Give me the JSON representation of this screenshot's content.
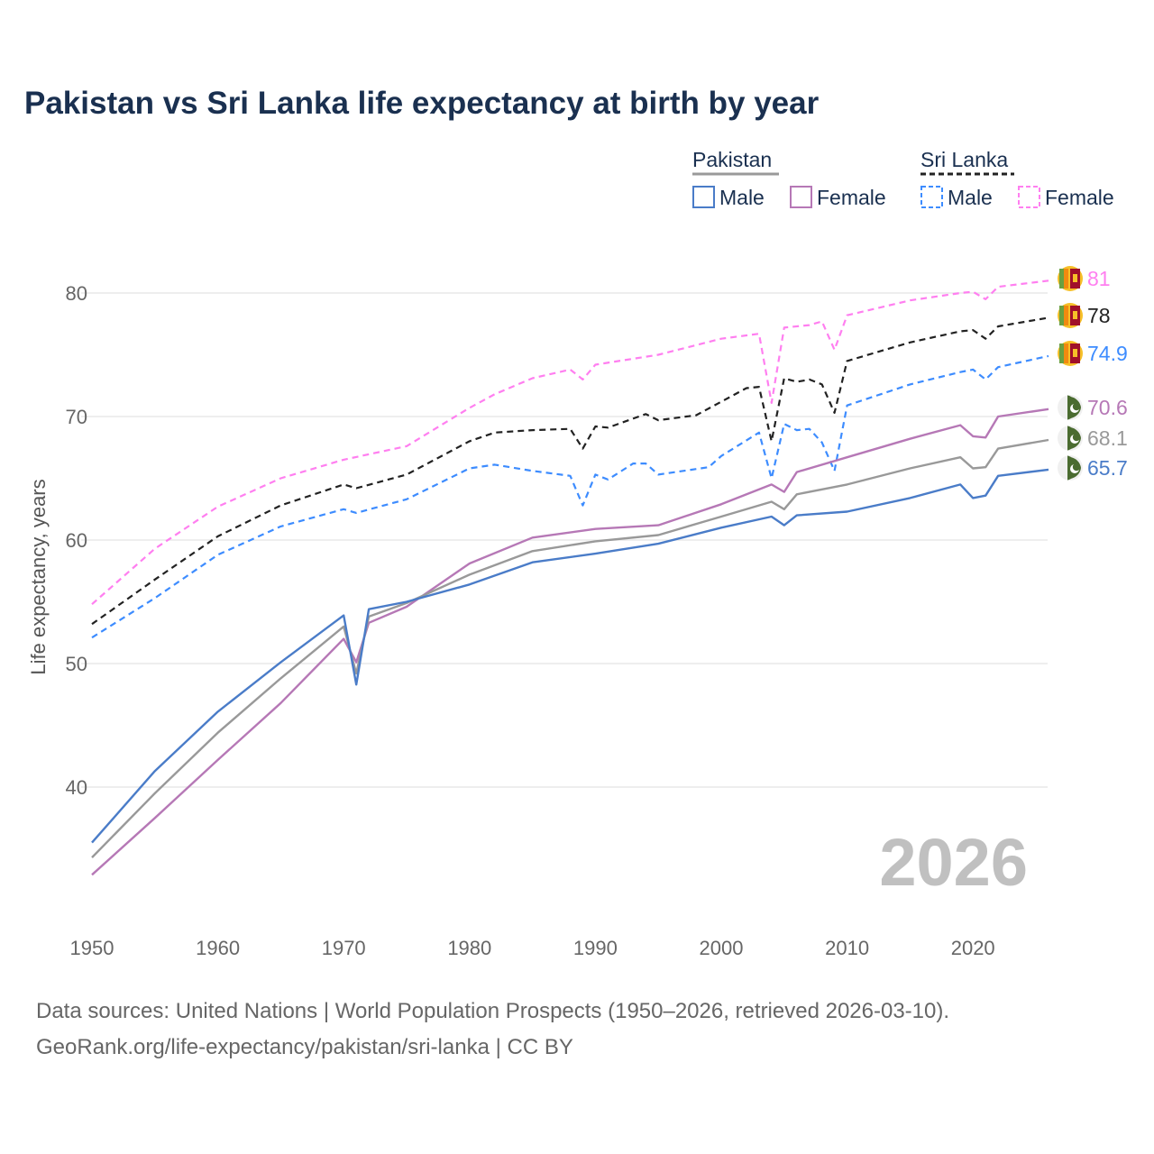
{
  "title": "Pakistan vs Sri Lanka life expectancy at birth by year",
  "legend": {
    "groups": [
      {
        "name": "Pakistan",
        "items": [
          "Male",
          "Female"
        ]
      },
      {
        "name": "Sri Lanka",
        "items": [
          "Male",
          "Female"
        ]
      }
    ]
  },
  "watermark_year": "2026",
  "sources": [
    "Data sources: United Nations | World Population Prospects (1950–2026, retrieved 2026-03-10).",
    "GeoRank.org/life-expectancy/pakistan/sri-lanka | CC BY"
  ],
  "chart_data": {
    "type": "line",
    "title": "Pakistan vs Sri Lanka life expectancy at birth by year",
    "xlabel": "",
    "ylabel": "Life expectancy, years",
    "xlim": [
      1950,
      2026
    ],
    "ylim": [
      32,
      85
    ],
    "xticks": [
      1950,
      1960,
      1970,
      1980,
      1990,
      2000,
      2010,
      2020
    ],
    "yticks": [
      40,
      50,
      60,
      70,
      80
    ],
    "grid": true,
    "legend_position": "top-right",
    "series": [
      {
        "name": "Sri Lanka Female",
        "country": "Sri Lanka",
        "color": "#ff7ff0",
        "dash": true,
        "end_label": "81",
        "x": [
          1950,
          1955,
          1960,
          1965,
          1970,
          1975,
          1980,
          1982,
          1985,
          1988,
          1989,
          1990,
          1995,
          2000,
          2003,
          2004,
          2005,
          2007,
          2008,
          2009,
          2010,
          2015,
          2019,
          2020,
          2021,
          2022,
          2026
        ],
        "y": [
          54.8,
          59.3,
          62.7,
          65.0,
          66.5,
          67.6,
          70.7,
          71.8,
          73.1,
          73.8,
          73.0,
          74.2,
          75.0,
          76.3,
          76.7,
          71.1,
          77.2,
          77.4,
          77.7,
          75.4,
          78.2,
          79.4,
          80.0,
          80.1,
          79.5,
          80.5,
          81.0
        ]
      },
      {
        "name": "Sri Lanka",
        "country": "Sri Lanka",
        "color": "#222222",
        "dash": true,
        "end_label": "78",
        "x": [
          1950,
          1955,
          1960,
          1965,
          1970,
          1971,
          1975,
          1980,
          1982,
          1985,
          1988,
          1989,
          1990,
          1991,
          1994,
          1995,
          1998,
          2000,
          2002,
          2003,
          2004,
          2005,
          2006,
          2007,
          2008,
          2009,
          2010,
          2015,
          2019,
          2020,
          2021,
          2022,
          2026
        ],
        "y": [
          53.2,
          56.8,
          60.3,
          62.8,
          64.5,
          64.2,
          65.3,
          68.0,
          68.7,
          68.9,
          69.0,
          67.4,
          69.2,
          69.1,
          70.2,
          69.7,
          70.1,
          71.2,
          72.3,
          72.4,
          68.0,
          73.1,
          72.8,
          73.0,
          72.6,
          70.3,
          74.5,
          76.0,
          76.9,
          77.0,
          76.3,
          77.3,
          78.0
        ]
      },
      {
        "name": "Sri Lanka Male",
        "country": "Sri Lanka",
        "color": "#3d8cff",
        "dash": true,
        "end_label": "74.9",
        "x": [
          1950,
          1955,
          1960,
          1965,
          1970,
          1971,
          1975,
          1980,
          1982,
          1985,
          1988,
          1989,
          1990,
          1991,
          1993,
          1994,
          1995,
          1999,
          2000,
          2003,
          2004,
          2005,
          2006,
          2007,
          2008,
          2009,
          2010,
          2015,
          2019,
          2020,
          2021,
          2022,
          2026
        ],
        "y": [
          52.1,
          55.3,
          58.8,
          61.1,
          62.5,
          62.2,
          63.3,
          65.8,
          66.1,
          65.6,
          65.2,
          62.8,
          65.3,
          64.9,
          66.2,
          66.2,
          65.3,
          65.9,
          66.8,
          68.7,
          65.0,
          69.4,
          68.9,
          69.0,
          67.9,
          65.6,
          70.9,
          72.6,
          73.6,
          73.8,
          73.0,
          74.0,
          74.9
        ]
      },
      {
        "name": "Pakistan Female",
        "country": "Pakistan",
        "color": "#b678b6",
        "dash": false,
        "end_label": "70.6",
        "x": [
          1950,
          1955,
          1960,
          1965,
          1970,
          1971,
          1972,
          1975,
          1980,
          1985,
          1990,
          1995,
          2000,
          2004,
          2005,
          2006,
          2010,
          2015,
          2019,
          2020,
          2021,
          2022,
          2026
        ],
        "y": [
          32.9,
          37.5,
          42.2,
          46.8,
          52.0,
          50.1,
          53.3,
          54.6,
          58.1,
          60.2,
          60.9,
          61.2,
          62.9,
          64.5,
          63.9,
          65.5,
          66.7,
          68.2,
          69.3,
          68.4,
          68.3,
          70.0,
          70.6
        ]
      },
      {
        "name": "Pakistan",
        "country": "Pakistan",
        "color": "#999999",
        "dash": false,
        "end_label": "68.1",
        "x": [
          1950,
          1955,
          1960,
          1965,
          1970,
          1971,
          1972,
          1975,
          1980,
          1985,
          1990,
          1995,
          2000,
          2004,
          2005,
          2006,
          2010,
          2015,
          2019,
          2020,
          2021,
          2022,
          2026
        ],
        "y": [
          34.3,
          39.5,
          44.4,
          48.8,
          53.0,
          49.2,
          53.8,
          54.9,
          57.2,
          59.1,
          59.9,
          60.4,
          61.9,
          63.1,
          62.5,
          63.7,
          64.5,
          65.8,
          66.7,
          65.8,
          65.9,
          67.4,
          68.1
        ]
      },
      {
        "name": "Pakistan Male",
        "country": "Pakistan",
        "color": "#4a7cc8",
        "dash": false,
        "end_label": "65.7",
        "x": [
          1950,
          1955,
          1960,
          1965,
          1970,
          1971,
          1972,
          1975,
          1980,
          1985,
          1990,
          1995,
          2000,
          2004,
          2005,
          2006,
          2010,
          2015,
          2019,
          2020,
          2021,
          2022,
          2026
        ],
        "y": [
          35.5,
          41.3,
          46.1,
          50.1,
          53.9,
          48.3,
          54.4,
          55.0,
          56.4,
          58.2,
          58.9,
          59.7,
          61.0,
          61.9,
          61.2,
          62.0,
          62.3,
          63.4,
          64.5,
          63.4,
          63.6,
          65.2,
          65.7
        ]
      }
    ]
  }
}
